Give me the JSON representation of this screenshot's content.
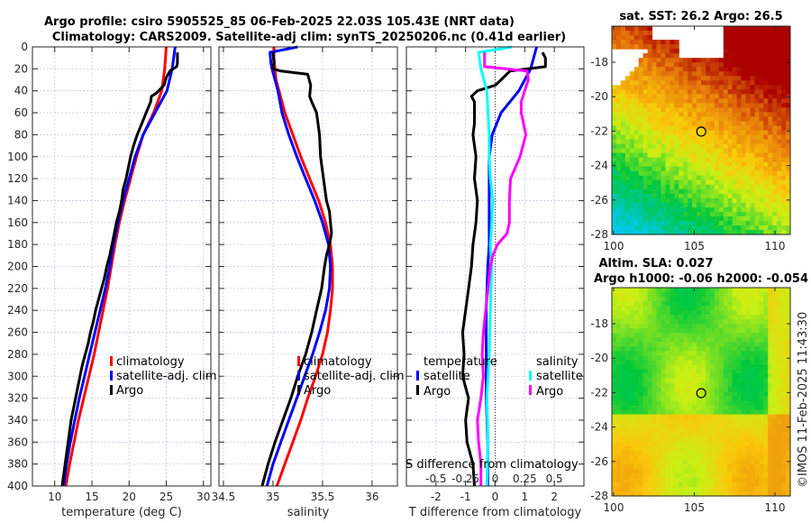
{
  "header": {
    "title_line1": "Argo profile: csiro 5905525_85 06-Feb-2025 22.03S 105.43E (NRT data)",
    "title_line2": "Climatology: CARS2009. Satellite-adj clim: synTS_20250206.nc (0.41d earlier)"
  },
  "colors": {
    "climatology": "#ff0000",
    "satellite": "#0000ff",
    "argo": "#000000",
    "sal_satellite": "#00ffff",
    "sal_argo": "#ff00ff",
    "grid": "#c8c8e6"
  },
  "chart_data": [
    {
      "type": "line",
      "name": "temperature-profile",
      "xlabel": "temperature (deg C)",
      "ylabel": "",
      "xlim": [
        7,
        31
      ],
      "ylim": [
        400,
        0
      ],
      "xticks": [
        10,
        15,
        20,
        25,
        30
      ],
      "yticks": [
        0,
        20,
        40,
        60,
        80,
        100,
        120,
        140,
        160,
        180,
        200,
        220,
        240,
        260,
        280,
        300,
        320,
        340,
        360,
        380,
        400
      ],
      "grid": true,
      "legend_position": "lower-center",
      "series": [
        {
          "name": "climatology",
          "color_key": "climatology",
          "depth": [
            0,
            20,
            40,
            60,
            80,
            100,
            120,
            140,
            160,
            180,
            200,
            220,
            240,
            260,
            280,
            300,
            320,
            340,
            360,
            380,
            400
          ],
          "values": [
            25.0,
            24.8,
            24.4,
            23.3,
            21.9,
            21.0,
            20.2,
            19.4,
            18.7,
            18.1,
            17.6,
            17.1,
            16.5,
            15.9,
            15.3,
            14.6,
            13.9,
            13.2,
            12.6,
            12.0,
            11.5
          ]
        },
        {
          "name": "satellite-adj. clim",
          "color_key": "satellite",
          "depth": [
            0,
            20,
            40,
            60,
            80,
            100,
            120,
            140,
            160,
            180,
            200,
            220,
            240,
            260,
            280,
            300,
            320,
            340,
            360,
            380,
            400
          ],
          "values": [
            26.2,
            25.8,
            25.1,
            23.5,
            21.9,
            20.8,
            20.0,
            19.2,
            18.5,
            17.9,
            17.4,
            16.8,
            16.1,
            15.4,
            14.7,
            14.0,
            13.3,
            12.7,
            12.1,
            11.6,
            11.2
          ]
        },
        {
          "name": "Argo",
          "color_key": "argo",
          "depth": [
            5,
            10,
            15,
            18,
            22,
            28,
            35,
            42,
            45,
            50,
            60,
            70,
            80,
            90,
            100,
            110,
            120,
            130,
            140,
            150,
            160,
            170,
            180,
            190,
            200,
            210,
            220,
            230,
            240,
            250,
            260,
            270,
            280,
            290,
            300,
            310,
            320,
            330,
            340,
            350,
            360,
            370,
            380,
            390,
            400
          ],
          "values": [
            26.5,
            26.5,
            26.5,
            26.4,
            25.5,
            25.0,
            24.7,
            23.7,
            23.0,
            22.9,
            22.3,
            21.7,
            21.1,
            20.6,
            20.2,
            19.9,
            19.6,
            19.2,
            19.0,
            18.7,
            18.3,
            18.0,
            17.7,
            17.4,
            17.0,
            16.7,
            16.3,
            15.9,
            15.5,
            15.2,
            14.8,
            14.5,
            14.1,
            13.7,
            13.4,
            13.1,
            12.8,
            12.5,
            12.2,
            12.0,
            11.8,
            11.6,
            11.4,
            11.2,
            11.0
          ]
        }
      ],
      "legend": [
        "climatology",
        "satellite-adj. clim",
        "Argo"
      ]
    },
    {
      "type": "line",
      "name": "salinity-profile",
      "xlabel": "salinity",
      "xlim": [
        34.455,
        36.255
      ],
      "ylim": [
        400,
        0
      ],
      "xticks": [
        34.5,
        35,
        35.5,
        36
      ],
      "grid": true,
      "legend_position": "lower-center",
      "series": [
        {
          "name": "climatology",
          "color_key": "climatology",
          "depth": [
            0,
            10,
            20,
            30,
            40,
            60,
            80,
            100,
            120,
            140,
            160,
            180,
            200,
            220,
            240,
            260,
            280,
            300,
            320,
            340,
            360,
            380,
            400
          ],
          "values": [
            35.01,
            35.01,
            35.02,
            35.03,
            35.06,
            35.12,
            35.2,
            35.28,
            35.37,
            35.46,
            35.53,
            35.58,
            35.6,
            35.6,
            35.58,
            35.55,
            35.5,
            35.43,
            35.35,
            35.28,
            35.2,
            35.12,
            35.04
          ]
        },
        {
          "name": "satellite-adj. clim",
          "color_key": "satellite",
          "depth": [
            0,
            5,
            15,
            20,
            30,
            40,
            60,
            80,
            100,
            120,
            140,
            160,
            180,
            200,
            220,
            240,
            260,
            280,
            300,
            320,
            340,
            360,
            380,
            400
          ],
          "values": [
            35.25,
            34.97,
            34.98,
            34.99,
            35.02,
            35.05,
            35.09,
            35.16,
            35.24,
            35.33,
            35.42,
            35.5,
            35.56,
            35.58,
            35.57,
            35.53,
            35.47,
            35.4,
            35.32,
            35.24,
            35.16,
            35.08,
            35.0,
            34.94
          ]
        },
        {
          "name": "Argo",
          "color_key": "argo",
          "depth": [
            5,
            15,
            20,
            22,
            25,
            35,
            45,
            50,
            60,
            80,
            100,
            120,
            140,
            150,
            160,
            170,
            180,
            190,
            200,
            220,
            240,
            260,
            280,
            300,
            320,
            340,
            360,
            380,
            400
          ],
          "values": [
            35.0,
            35.01,
            35.0,
            35.08,
            35.35,
            35.38,
            35.37,
            35.39,
            35.44,
            35.47,
            35.48,
            35.51,
            35.54,
            35.57,
            35.58,
            35.59,
            35.57,
            35.54,
            35.52,
            35.49,
            35.44,
            35.39,
            35.33,
            35.25,
            35.18,
            35.1,
            35.02,
            34.95,
            34.89
          ]
        }
      ],
      "legend": [
        "climatology",
        "satellite-adj. clim",
        "Argo"
      ]
    },
    {
      "type": "line",
      "name": "difference-from-climatology",
      "xlabel": "T difference from climatology",
      "secondary_xlabel": "S difference from climatology",
      "xlim": [
        -3,
        3
      ],
      "secondary_xlim": [
        -0.75,
        0.75
      ],
      "ylim": [
        400,
        0
      ],
      "xticks": [
        -2,
        -1,
        0,
        1,
        2
      ],
      "secondary_xticks": [
        -0.5,
        -0.25,
        0,
        0.25,
        0.5
      ],
      "secondary_xtick_labels": [
        "-0.5",
        "-0.25",
        "0",
        "0.25",
        "0.5"
      ],
      "grid": true,
      "zero_line": true,
      "legend_position": "lower",
      "legend_groups": {
        "temperature": [
          "satellite",
          "Argo"
        ],
        "salinity": [
          "satellite",
          "Argo"
        ]
      },
      "series": [
        {
          "name": "temperature satellite",
          "color_key": "satellite",
          "axis": "T",
          "depth": [
            0,
            20,
            40,
            60,
            80,
            100,
            120,
            140,
            160,
            180,
            200,
            240,
            280,
            320,
            360,
            400
          ],
          "values": [
            1.4,
            1.2,
            0.8,
            0.2,
            -0.1,
            -0.2,
            -0.2,
            -0.2,
            -0.2,
            -0.2,
            -0.25,
            -0.3,
            -0.3,
            -0.3,
            -0.25,
            -0.25
          ]
        },
        {
          "name": "temperature Argo",
          "color_key": "argo",
          "axis": "T",
          "depth": [
            5,
            10,
            18,
            22,
            30,
            35,
            40,
            45,
            50,
            60,
            70,
            80,
            100,
            120,
            140,
            160,
            180,
            200,
            220,
            240,
            260,
            280,
            300,
            320,
            340,
            360,
            380,
            400
          ],
          "values": [
            1.6,
            1.7,
            1.7,
            0.5,
            0.2,
            0.0,
            -0.6,
            -0.8,
            -0.7,
            -0.7,
            -0.7,
            -0.75,
            -0.65,
            -0.7,
            -0.6,
            -0.65,
            -0.75,
            -0.8,
            -0.9,
            -1.0,
            -1.1,
            -1.05,
            -1.1,
            -0.9,
            -1.0,
            -0.95,
            -0.75,
            -0.7
          ]
        },
        {
          "name": "salinity satellite",
          "color_key": "sal_satellite",
          "axis": "S",
          "depth": [
            0,
            5,
            20,
            40,
            60,
            80,
            100,
            120,
            140,
            160,
            180,
            200,
            240,
            280,
            320,
            360,
            400
          ],
          "values": [
            0.14,
            -0.14,
            -0.12,
            -0.07,
            -0.06,
            -0.05,
            -0.05,
            -0.04,
            -0.02,
            -0.03,
            -0.04,
            -0.03,
            -0.04,
            -0.05,
            -0.07,
            -0.06,
            -0.07
          ]
        },
        {
          "name": "salinity Argo",
          "color_key": "sal_argo",
          "axis": "S",
          "depth": [
            5,
            18,
            22,
            30,
            40,
            50,
            60,
            80,
            100,
            120,
            140,
            160,
            170,
            180,
            190,
            200,
            220,
            240,
            260,
            280,
            300,
            320,
            340,
            360,
            380,
            400
          ],
          "values": [
            -0.09,
            -0.09,
            0.27,
            0.28,
            0.25,
            0.22,
            0.22,
            0.26,
            0.21,
            0.13,
            0.12,
            0.12,
            0.1,
            0.02,
            -0.02,
            -0.04,
            -0.06,
            -0.08,
            -0.1,
            -0.11,
            -0.1,
            -0.12,
            -0.15,
            -0.14,
            -0.12,
            -0.12
          ]
        }
      ],
      "legend": {
        "temperature_header": "temperature",
        "salinity_header": "salinity",
        "t_satellite": "satellite",
        "t_argo": "Argo",
        "s_satellite": "satellite",
        "s_argo": "Argo"
      }
    },
    {
      "type": "heatmap",
      "name": "sst-map",
      "title": "sat. SST: 26.2 Argo: 26.5",
      "xlim": [
        100,
        111
      ],
      "ylim": [
        -28,
        -16
      ],
      "xticks": [
        100,
        105,
        110
      ],
      "yticks": [
        -18,
        -20,
        -22,
        -24,
        -26,
        -28
      ],
      "marker": {
        "lon": 105.43,
        "lat": -22.03,
        "fill": "#f0d010"
      }
    },
    {
      "type": "heatmap",
      "name": "sla-map",
      "title_line1": "Altim. SLA: 0.027",
      "title_line2": "Argo h1000: -0.06 h2000: -0.054",
      "xlim": [
        100,
        111
      ],
      "ylim": [
        -28,
        -16
      ],
      "xticks": [
        100,
        105,
        110
      ],
      "yticks": [
        -18,
        -20,
        -22,
        -24,
        -26,
        -28
      ],
      "marker": {
        "lon": 105.43,
        "lat": -22.03,
        "fill": "none"
      }
    }
  ],
  "footer": {
    "credit": "©IMOS 11-Feb-2025 11:43:30"
  }
}
